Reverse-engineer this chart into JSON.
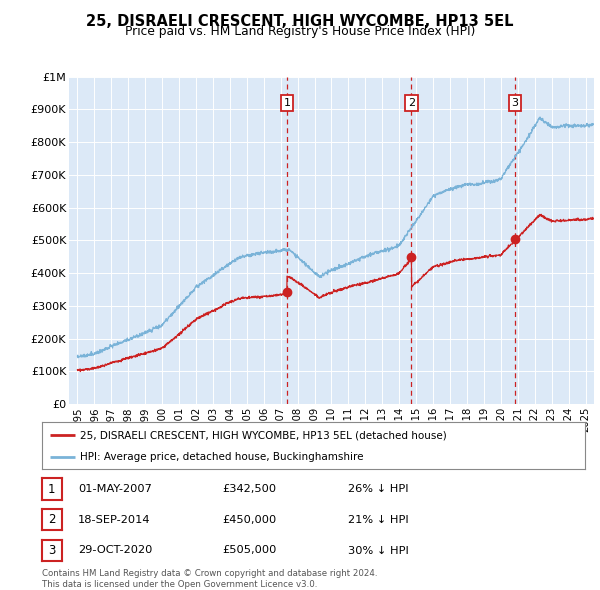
{
  "title": "25, DISRAELI CRESCENT, HIGH WYCOMBE, HP13 5EL",
  "subtitle": "Price paid vs. HM Land Registry's House Price Index (HPI)",
  "background_color": "#ffffff",
  "plot_bg_color": "#dce9f7",
  "grid_color": "#ffffff",
  "ylim": [
    0,
    1000000
  ],
  "yticks": [
    0,
    100000,
    200000,
    300000,
    400000,
    500000,
    600000,
    700000,
    800000,
    900000,
    1000000
  ],
  "ytick_labels": [
    "£0",
    "£100K",
    "£200K",
    "£300K",
    "£400K",
    "£500K",
    "£600K",
    "£700K",
    "£800K",
    "£900K",
    "£1M"
  ],
  "hpi_color": "#7ab3d8",
  "sale_color": "#cc2222",
  "vline_color": "#cc2222",
  "marker_box_color": "#cc2222",
  "sales": [
    {
      "date_num": 2007.37,
      "price": 342500,
      "label": "1"
    },
    {
      "date_num": 2014.72,
      "price": 450000,
      "label": "2"
    },
    {
      "date_num": 2020.83,
      "price": 505000,
      "label": "3"
    }
  ],
  "sale_dates_text": [
    "01-MAY-2007",
    "18-SEP-2014",
    "29-OCT-2020"
  ],
  "sale_prices_text": [
    "£342,500",
    "£450,000",
    "£505,000"
  ],
  "sale_pct_text": [
    "26% ↓ HPI",
    "21% ↓ HPI",
    "30% ↓ HPI"
  ],
  "legend_sale_label": "25, DISRAELI CRESCENT, HIGH WYCOMBE, HP13 5EL (detached house)",
  "legend_hpi_label": "HPI: Average price, detached house, Buckinghamshire",
  "footnote": "Contains HM Land Registry data © Crown copyright and database right 2024.\nThis data is licensed under the Open Government Licence v3.0.",
  "xlim_start": 1994.5,
  "xlim_end": 2025.5,
  "xticks": [
    1995,
    1996,
    1997,
    1998,
    1999,
    2000,
    2001,
    2002,
    2003,
    2004,
    2005,
    2006,
    2007,
    2008,
    2009,
    2010,
    2011,
    2012,
    2013,
    2014,
    2015,
    2016,
    2017,
    2018,
    2019,
    2020,
    2021,
    2022,
    2023,
    2024,
    2025
  ]
}
